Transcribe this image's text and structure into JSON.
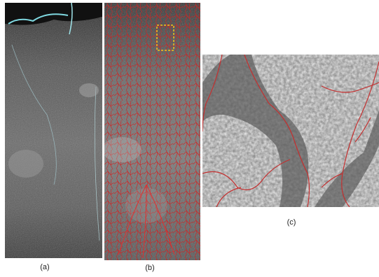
{
  "figure": {
    "panels": [
      {
        "id": "a",
        "caption": "(a)",
        "content": "grayscale-satellite-image"
      },
      {
        "id": "b",
        "caption": "(b)",
        "content": "image-with-red-drainage-network",
        "overlay_color": "#d42020",
        "highlight_box_color": "#f2c21a"
      },
      {
        "id": "c",
        "caption": "(c)",
        "content": "zoomed-detail-with-red-channels",
        "overlay_color": "#c43030"
      }
    ]
  }
}
